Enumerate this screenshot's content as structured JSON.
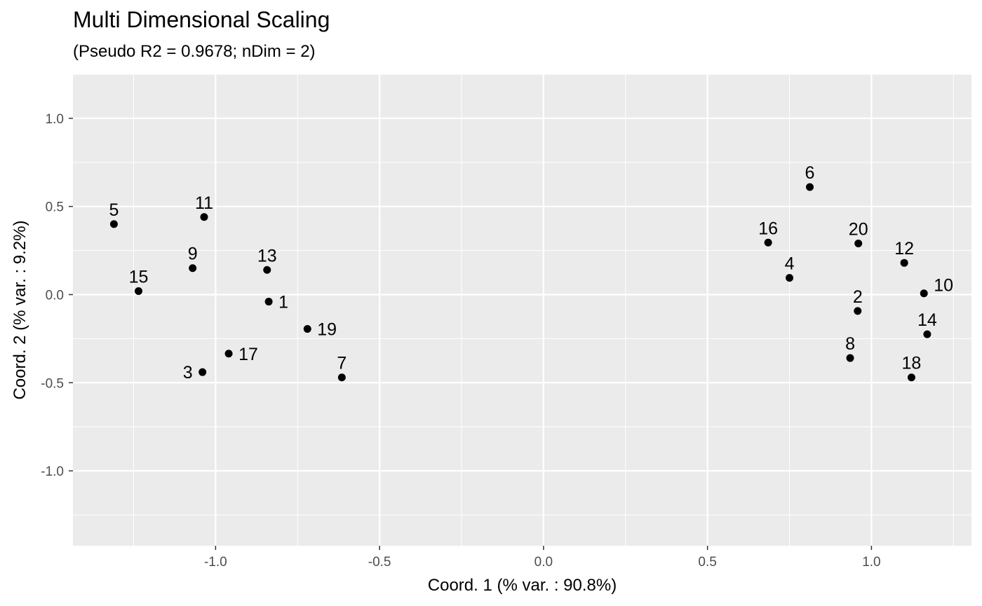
{
  "chart_data": {
    "type": "scatter",
    "title": "Multi Dimensional Scaling",
    "subtitle": "(Pseudo R2 = 0.9678; nDim = 2)",
    "xlabel": "Coord. 1 (% var. : 90.8%)",
    "ylabel": "Coord. 2 (% var. : 9.2%)",
    "xlim": [
      -1.435,
      1.305
    ],
    "ylim": [
      -1.425,
      1.25
    ],
    "xticks": [
      -1.0,
      -0.5,
      0.0,
      0.5,
      1.0
    ],
    "xtick_labels": [
      "-1.0",
      "-0.5",
      "0.0",
      "0.5",
      "1.0"
    ],
    "yticks": [
      -1.0,
      -0.5,
      0.0,
      0.5,
      1.0
    ],
    "ytick_labels": [
      "-1.0",
      "-0.5",
      "0.0",
      "0.5",
      "1.0"
    ],
    "grid": true,
    "colors": {
      "panel_background": "#EBEBEB",
      "grid_line": "#FFFFFF",
      "point": "#000000",
      "tick_label": "#4D4D4D"
    },
    "points": [
      {
        "label": "1",
        "x": -0.838,
        "y": -0.04,
        "label_pos": "right"
      },
      {
        "label": "2",
        "x": 0.958,
        "y": -0.093,
        "label_pos": "top"
      },
      {
        "label": "3",
        "x": -1.04,
        "y": -0.44,
        "label_pos": "left"
      },
      {
        "label": "4",
        "x": 0.75,
        "y": 0.095,
        "label_pos": "top"
      },
      {
        "label": "5",
        "x": -1.31,
        "y": 0.4,
        "label_pos": "top"
      },
      {
        "label": "6",
        "x": 0.812,
        "y": 0.61,
        "label_pos": "top"
      },
      {
        "label": "7",
        "x": -0.615,
        "y": -0.47,
        "label_pos": "top"
      },
      {
        "label": "8",
        "x": 0.935,
        "y": -0.36,
        "label_pos": "top"
      },
      {
        "label": "9",
        "x": -1.07,
        "y": 0.15,
        "label_pos": "top"
      },
      {
        "label": "10",
        "x": 1.16,
        "y": 0.007,
        "label_pos": "top-right"
      },
      {
        "label": "11",
        "x": -1.035,
        "y": 0.44,
        "label_pos": "top"
      },
      {
        "label": "12",
        "x": 1.1,
        "y": 0.18,
        "label_pos": "top"
      },
      {
        "label": "13",
        "x": -0.843,
        "y": 0.14,
        "label_pos": "top"
      },
      {
        "label": "14",
        "x": 1.17,
        "y": -0.225,
        "label_pos": "top"
      },
      {
        "label": "15",
        "x": -1.235,
        "y": 0.02,
        "label_pos": "top"
      },
      {
        "label": "16",
        "x": 0.685,
        "y": 0.295,
        "label_pos": "top"
      },
      {
        "label": "17",
        "x": -0.96,
        "y": -0.335,
        "label_pos": "right"
      },
      {
        "label": "18",
        "x": 1.122,
        "y": -0.47,
        "label_pos": "top"
      },
      {
        "label": "19",
        "x": -0.72,
        "y": -0.195,
        "label_pos": "right"
      },
      {
        "label": "20",
        "x": 0.96,
        "y": 0.29,
        "label_pos": "top"
      }
    ]
  }
}
